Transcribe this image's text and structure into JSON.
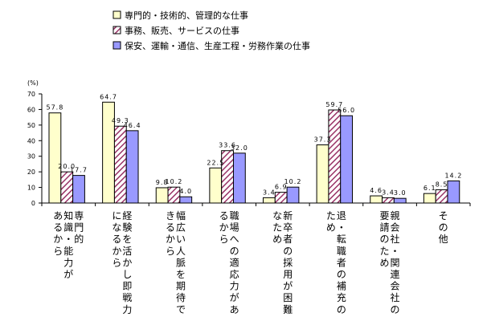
{
  "chart_data": {
    "type": "bar",
    "unit_label": "(%)",
    "yticks": [
      0,
      10,
      20,
      30,
      40,
      50,
      60,
      70
    ],
    "ylim": [
      0,
      70
    ],
    "legend_position": "top",
    "categories": [
      [
        "専門的",
        "知識・能力が",
        "あるから"
      ],
      [
        "経験を活かし即戦力",
        "になるから"
      ],
      [
        "幅広い人脈を期待で",
        "きるから"
      ],
      [
        "職場への適応力があ",
        "るから"
      ],
      [
        "新卒者の採用が困難",
        "なため"
      ],
      [
        "退・転職者の補充の",
        "ため"
      ],
      [
        "親会社・関連会社の",
        "要請のため"
      ],
      [
        "その他"
      ]
    ],
    "series": [
      {
        "name": "専門的・技術的、管理的な仕事",
        "color": "#ffffcc",
        "pattern": "solid",
        "values": [
          57.8,
          64.7,
          9.8,
          22.5,
          3.4,
          37.3,
          4.6,
          6.1
        ],
        "labels": [
          "57.8",
          "64.7",
          "9.8",
          "22.5",
          "3.4",
          "37.3",
          "4.6",
          "6.1"
        ]
      },
      {
        "name": "事務、販売、サービスの仕事",
        "color": "#993366",
        "pattern": "hatch",
        "values": [
          20.0,
          49.3,
          10.2,
          33.6,
          6.9,
          59.7,
          3.4,
          8.5
        ],
        "labels": [
          "20.0",
          "49.3",
          "10.2",
          "33.6",
          "6.9",
          "59.7",
          "3.4",
          "8.5"
        ]
      },
      {
        "name": "保安、運輸・通信、生産工程・労務作業の仕事",
        "color": "#9999ff",
        "pattern": "solid",
        "values": [
          17.7,
          46.4,
          4.0,
          32.0,
          10.2,
          56.0,
          3.0,
          14.2
        ],
        "labels": [
          "17.7",
          "46.4",
          "4.0",
          "32.0",
          "10.2",
          "56.0",
          "3.0",
          "14.2"
        ]
      }
    ]
  }
}
